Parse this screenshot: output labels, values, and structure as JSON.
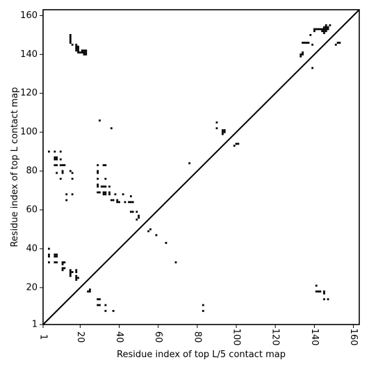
{
  "chart_data": {
    "type": "scatter",
    "xlabel": "Residue index of top L/5 contact map",
    "ylabel": "Residue index of top L contact map",
    "xlim": [
      1,
      163
    ],
    "ylim": [
      1,
      163
    ],
    "x_ticks": [
      1,
      20,
      40,
      60,
      80,
      100,
      120,
      140,
      160
    ],
    "x_tick_labels": [
      "1",
      "20",
      "40",
      "60",
      "80",
      "100",
      "120",
      "140",
      "160"
    ],
    "y_ticks": [
      1,
      20,
      40,
      60,
      80,
      100,
      120,
      140,
      160
    ],
    "y_tick_labels": [
      "1",
      "20",
      "40",
      "60",
      "80",
      "100",
      "120",
      "140",
      "160"
    ],
    "grid": false,
    "diagonal": true,
    "marker": "square",
    "color": "#000000",
    "series": [
      {
        "region": "upper-left (top L contacts)",
        "points": [
          [
            15,
            146
          ],
          [
            15,
            147
          ],
          [
            15,
            148
          ],
          [
            15,
            149
          ],
          [
            15,
            150
          ],
          [
            16,
            145
          ],
          [
            18,
            142
          ],
          [
            18,
            143
          ],
          [
            18,
            144
          ],
          [
            18,
            145
          ],
          [
            19,
            141
          ],
          [
            19,
            142
          ],
          [
            19,
            143
          ],
          [
            19,
            144
          ],
          [
            20,
            141
          ],
          [
            21,
            141
          ],
          [
            21,
            142
          ],
          [
            22,
            140
          ],
          [
            22,
            141
          ],
          [
            22,
            142
          ],
          [
            23,
            140
          ],
          [
            23,
            141
          ],
          [
            23,
            142
          ],
          [
            30,
            106
          ],
          [
            36,
            102
          ],
          [
            4,
            90
          ],
          [
            7,
            90
          ],
          [
            10,
            90
          ],
          [
            7,
            86
          ],
          [
            7,
            87
          ],
          [
            8,
            86
          ],
          [
            8,
            87
          ],
          [
            10,
            86
          ],
          [
            7,
            83
          ],
          [
            8,
            83
          ],
          [
            10,
            83
          ],
          [
            11,
            83
          ],
          [
            12,
            83
          ],
          [
            11,
            80
          ],
          [
            11,
            79
          ],
          [
            8,
            79
          ],
          [
            10,
            76
          ],
          [
            15,
            80
          ],
          [
            16,
            79
          ],
          [
            16,
            76
          ],
          [
            29,
            83
          ],
          [
            29,
            80
          ],
          [
            29,
            79
          ],
          [
            29,
            76
          ],
          [
            32,
            83
          ],
          [
            33,
            83
          ],
          [
            33,
            76
          ],
          [
            29,
            73
          ],
          [
            29,
            72
          ],
          [
            31,
            72
          ],
          [
            32,
            72
          ],
          [
            33,
            72
          ],
          [
            35,
            72
          ],
          [
            29,
            69
          ],
          [
            30,
            69
          ],
          [
            32,
            69
          ],
          [
            32,
            68
          ],
          [
            33,
            68
          ],
          [
            33,
            69
          ],
          [
            35,
            69
          ],
          [
            35,
            68
          ],
          [
            38,
            68
          ],
          [
            13,
            68
          ],
          [
            16,
            68
          ],
          [
            13,
            65
          ],
          [
            36,
            65
          ],
          [
            37,
            65
          ],
          [
            39,
            65
          ],
          [
            39,
            64
          ],
          [
            40,
            64
          ],
          [
            42,
            68
          ],
          [
            43,
            64
          ],
          [
            45,
            64
          ],
          [
            46,
            67
          ],
          [
            46,
            64
          ],
          [
            47,
            64
          ],
          [
            46,
            59
          ],
          [
            47,
            59
          ],
          [
            49,
            59
          ],
          [
            49,
            55
          ],
          [
            50,
            57
          ],
          [
            50,
            56
          ],
          [
            55,
            49
          ],
          [
            56,
            50
          ],
          [
            59,
            47
          ],
          [
            64,
            43
          ],
          [
            69,
            33
          ],
          [
            76,
            84
          ],
          [
            90,
            105
          ],
          [
            90,
            102
          ],
          [
            93,
            101
          ],
          [
            93,
            100
          ],
          [
            94,
            101
          ],
          [
            94,
            100
          ],
          [
            93,
            99
          ],
          [
            99,
            93
          ],
          [
            100,
            94
          ],
          [
            101,
            94
          ],
          [
            4,
            40
          ],
          [
            4,
            37
          ],
          [
            4,
            36
          ],
          [
            4,
            33
          ],
          [
            7,
            37
          ],
          [
            7,
            36
          ],
          [
            8,
            37
          ],
          [
            8,
            36
          ],
          [
            7,
            33
          ],
          [
            8,
            33
          ],
          [
            11,
            33
          ],
          [
            11,
            32
          ],
          [
            12,
            33
          ],
          [
            11,
            30
          ],
          [
            11,
            29
          ],
          [
            12,
            30
          ],
          [
            15,
            29
          ],
          [
            15,
            28
          ],
          [
            15,
            27
          ],
          [
            15,
            26
          ],
          [
            16,
            28
          ],
          [
            18,
            29
          ],
          [
            18,
            28
          ],
          [
            18,
            26
          ],
          [
            18,
            25
          ],
          [
            18,
            24
          ],
          [
            19,
            25
          ],
          [
            25,
            19
          ],
          [
            24,
            18
          ],
          [
            25,
            18
          ],
          [
            29,
            14
          ],
          [
            29,
            11
          ],
          [
            30,
            14
          ],
          [
            30,
            11
          ],
          [
            33,
            11
          ],
          [
            33,
            8
          ],
          [
            37,
            8
          ]
        ]
      },
      {
        "region": "lower-right (top L/5 contacts)",
        "points": [
          [
            83,
            11
          ],
          [
            83,
            8
          ],
          [
            133,
            140
          ],
          [
            133,
            139
          ],
          [
            134,
            141
          ],
          [
            134,
            140
          ],
          [
            134,
            146
          ],
          [
            135,
            146
          ],
          [
            136,
            146
          ],
          [
            137,
            146
          ],
          [
            138,
            150
          ],
          [
            139,
            145
          ],
          [
            139,
            133
          ],
          [
            140,
            152
          ],
          [
            140,
            153
          ],
          [
            141,
            153
          ],
          [
            142,
            153
          ],
          [
            143,
            153
          ],
          [
            144,
            152
          ],
          [
            144,
            153
          ],
          [
            145,
            151
          ],
          [
            145,
            152
          ],
          [
            145,
            153
          ],
          [
            145,
            154
          ],
          [
            146,
            152
          ],
          [
            146,
            153
          ],
          [
            146,
            154
          ],
          [
            146,
            155
          ],
          [
            147,
            153
          ],
          [
            147,
            154
          ],
          [
            148,
            155
          ],
          [
            151,
            145
          ],
          [
            152,
            146
          ],
          [
            153,
            146
          ],
          [
            141,
            21
          ],
          [
            141,
            18
          ],
          [
            142,
            18
          ],
          [
            143,
            18
          ],
          [
            145,
            18
          ],
          [
            145,
            17
          ],
          [
            145,
            14
          ],
          [
            147,
            14
          ]
        ]
      }
    ]
  }
}
